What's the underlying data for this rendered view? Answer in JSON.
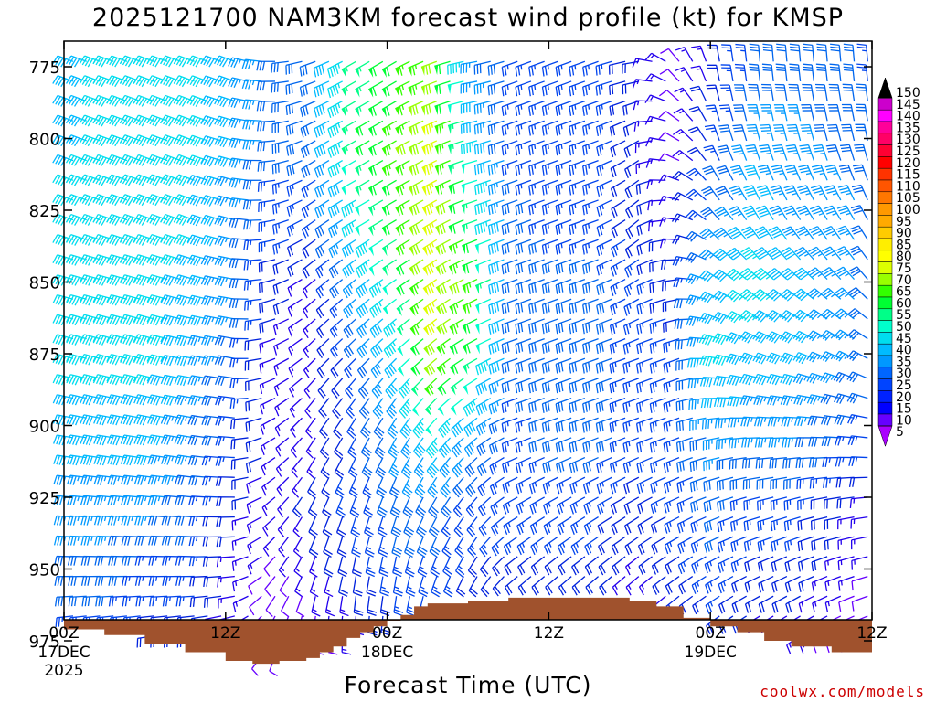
{
  "chart_data": {
    "type": "wind-barb-time-height",
    "title": "2025121700 NAM3KM forecast wind profile (kt) for KMSP",
    "xlabel": "Forecast Time (UTC)",
    "ylabel": "",
    "credit": "coolwx.com/models",
    "xlim": [
      0,
      60
    ],
    "ylim": [
      990,
      766
    ],
    "x_ticks": [
      {
        "hour": 0,
        "label": "00Z",
        "date": "17DEC",
        "year": "2025"
      },
      {
        "hour": 12,
        "label": "12Z",
        "date": "",
        "year": ""
      },
      {
        "hour": 24,
        "label": "00Z",
        "date": "18DEC",
        "year": ""
      },
      {
        "hour": 36,
        "label": "12Z",
        "date": "",
        "year": ""
      },
      {
        "hour": 48,
        "label": "00Z",
        "date": "19DEC",
        "year": ""
      },
      {
        "hour": 60,
        "label": "12Z",
        "date": "",
        "year": ""
      }
    ],
    "y_ticks": [
      775,
      800,
      825,
      850,
      875,
      900,
      925,
      950,
      975
    ],
    "surface_pressure": [
      {
        "hour": 0,
        "p": 971
      },
      {
        "hour": 3,
        "p": 973
      },
      {
        "hour": 6,
        "p": 976
      },
      {
        "hour": 9,
        "p": 979
      },
      {
        "hour": 12,
        "p": 982
      },
      {
        "hour": 14,
        "p": 983
      },
      {
        "hour": 16,
        "p": 982
      },
      {
        "hour": 18,
        "p": 981
      },
      {
        "hour": 19,
        "p": 979
      },
      {
        "hour": 20,
        "p": 977
      },
      {
        "hour": 21,
        "p": 974
      },
      {
        "hour": 22,
        "p": 972
      },
      {
        "hour": 23,
        "p": 970
      },
      {
        "hour": 24,
        "p": 968
      },
      {
        "hour": 25,
        "p": 966
      },
      {
        "hour": 26,
        "p": 963
      },
      {
        "hour": 27,
        "p": 962
      },
      {
        "hour": 30,
        "p": 961
      },
      {
        "hour": 33,
        "p": 960
      },
      {
        "hour": 36,
        "p": 960
      },
      {
        "hour": 39,
        "p": 960
      },
      {
        "hour": 41,
        "p": 960
      },
      {
        "hour": 42,
        "p": 961
      },
      {
        "hour": 44,
        "p": 963
      },
      {
        "hour": 46,
        "p": 967
      },
      {
        "hour": 48,
        "p": 970
      },
      {
        "hour": 50,
        "p": 972
      },
      {
        "hour": 52,
        "p": 975
      },
      {
        "hour": 54,
        "p": 977
      },
      {
        "hour": 57,
        "p": 979
      },
      {
        "hour": 60,
        "p": 981
      }
    ],
    "barb_hours": [
      0,
      3,
      6,
      9,
      12,
      15,
      18,
      21,
      24,
      27,
      30,
      33,
      36,
      39,
      42,
      45,
      48,
      51,
      54,
      57,
      60
    ],
    "barb_levels": [
      775,
      800,
      825,
      850,
      875,
      900,
      925,
      950,
      975
    ],
    "speed_kt": [
      [
        40,
        40,
        45,
        45,
        45,
        40,
        35,
        30,
        25
      ],
      [
        45,
        45,
        45,
        45,
        45,
        40,
        35,
        30,
        25
      ],
      [
        45,
        45,
        45,
        45,
        45,
        40,
        35,
        25,
        20
      ],
      [
        45,
        45,
        45,
        40,
        40,
        35,
        30,
        25,
        20
      ],
      [
        40,
        40,
        35,
        35,
        30,
        25,
        20,
        15,
        15
      ],
      [
        30,
        30,
        25,
        20,
        15,
        15,
        15,
        10,
        10
      ],
      [
        30,
        30,
        25,
        15,
        15,
        15,
        20,
        15,
        10
      ],
      [
        55,
        55,
        45,
        35,
        25,
        25,
        25,
        20,
        15
      ],
      [
        60,
        65,
        60,
        50,
        40,
        35,
        30,
        25,
        20
      ],
      [
        70,
        75,
        75,
        75,
        70,
        45,
        30,
        25,
        20
      ],
      [
        35,
        45,
        55,
        65,
        55,
        35,
        25,
        20,
        20
      ],
      [
        25,
        25,
        30,
        30,
        30,
        25,
        25,
        20,
        15
      ],
      [
        25,
        25,
        25,
        30,
        30,
        30,
        25,
        20,
        15
      ],
      [
        25,
        25,
        25,
        30,
        30,
        30,
        25,
        20,
        15
      ],
      [
        20,
        20,
        20,
        25,
        25,
        25,
        20,
        15,
        15
      ],
      [
        10,
        10,
        15,
        20,
        25,
        25,
        25,
        20,
        15
      ],
      [
        20,
        25,
        30,
        40,
        45,
        35,
        30,
        25,
        20
      ],
      [
        30,
        35,
        40,
        45,
        40,
        35,
        25,
        20,
        15
      ],
      [
        30,
        35,
        35,
        40,
        40,
        35,
        25,
        20,
        15
      ],
      [
        30,
        30,
        35,
        35,
        35,
        30,
        20,
        15,
        10
      ],
      [
        25,
        30,
        30,
        30,
        30,
        25,
        15,
        10,
        5
      ]
    ],
    "direction_deg": [
      [
        290,
        290,
        290,
        285,
        285,
        280,
        275,
        270,
        260
      ],
      [
        290,
        290,
        290,
        285,
        285,
        280,
        275,
        270,
        260
      ],
      [
        290,
        290,
        290,
        285,
        285,
        280,
        275,
        270,
        260
      ],
      [
        290,
        290,
        290,
        285,
        280,
        280,
        275,
        270,
        260
      ],
      [
        290,
        285,
        285,
        280,
        280,
        275,
        270,
        265,
        250
      ],
      [
        270,
        265,
        260,
        255,
        250,
        240,
        230,
        220,
        200
      ],
      [
        250,
        240,
        235,
        230,
        225,
        215,
        205,
        200,
        180
      ],
      [
        240,
        240,
        240,
        230,
        225,
        210,
        200,
        190,
        180
      ],
      [
        240,
        240,
        240,
        235,
        225,
        210,
        200,
        190,
        185
      ],
      [
        250,
        245,
        240,
        235,
        230,
        220,
        210,
        200,
        190
      ],
      [
        260,
        255,
        250,
        245,
        240,
        230,
        220,
        210,
        200
      ],
      [
        250,
        250,
        250,
        250,
        250,
        250,
        240,
        230,
        220
      ],
      [
        250,
        250,
        250,
        250,
        250,
        250,
        240,
        230,
        220
      ],
      [
        250,
        250,
        250,
        250,
        250,
        250,
        240,
        230,
        220
      ],
      [
        260,
        240,
        230,
        240,
        250,
        250,
        240,
        230,
        220
      ],
      [
        320,
        300,
        280,
        260,
        250,
        250,
        245,
        235,
        225
      ],
      [
        350,
        340,
        320,
        300,
        280,
        260,
        250,
        240,
        230
      ],
      [
        355,
        345,
        330,
        310,
        290,
        270,
        255,
        245,
        235
      ],
      [
        355,
        345,
        330,
        310,
        290,
        270,
        255,
        245,
        235
      ],
      [
        355,
        345,
        330,
        315,
        295,
        275,
        260,
        250,
        240
      ],
      [
        355,
        350,
        335,
        320,
        300,
        280,
        265,
        255,
        245
      ]
    ],
    "colorbar": {
      "labels": [
        "150",
        "145",
        "140",
        "135",
        "130",
        "125",
        "120",
        "115",
        "110",
        "105",
        "100",
        "95",
        "90",
        "85",
        "80",
        "75",
        "70",
        "65",
        "60",
        "55",
        "50",
        "45",
        "40",
        "35",
        "30",
        "25",
        "20",
        "15",
        "10",
        "5"
      ],
      "colors": [
        "#000000",
        "#cc00cc",
        "#ff00ff",
        "#ff0099",
        "#ff0066",
        "#ff0033",
        "#ff0000",
        "#ff3300",
        "#ff5500",
        "#ff7700",
        "#ff9900",
        "#ffaa00",
        "#ffcc00",
        "#ffee00",
        "#ffff00",
        "#ddff00",
        "#99ff00",
        "#33ff00",
        "#00ff33",
        "#00ff88",
        "#00ffcc",
        "#00ddee",
        "#00bbff",
        "#0099ff",
        "#0066ff",
        "#0044ff",
        "#0022ff",
        "#0000ff",
        "#6600ff",
        "#aa00ff"
      ]
    }
  }
}
